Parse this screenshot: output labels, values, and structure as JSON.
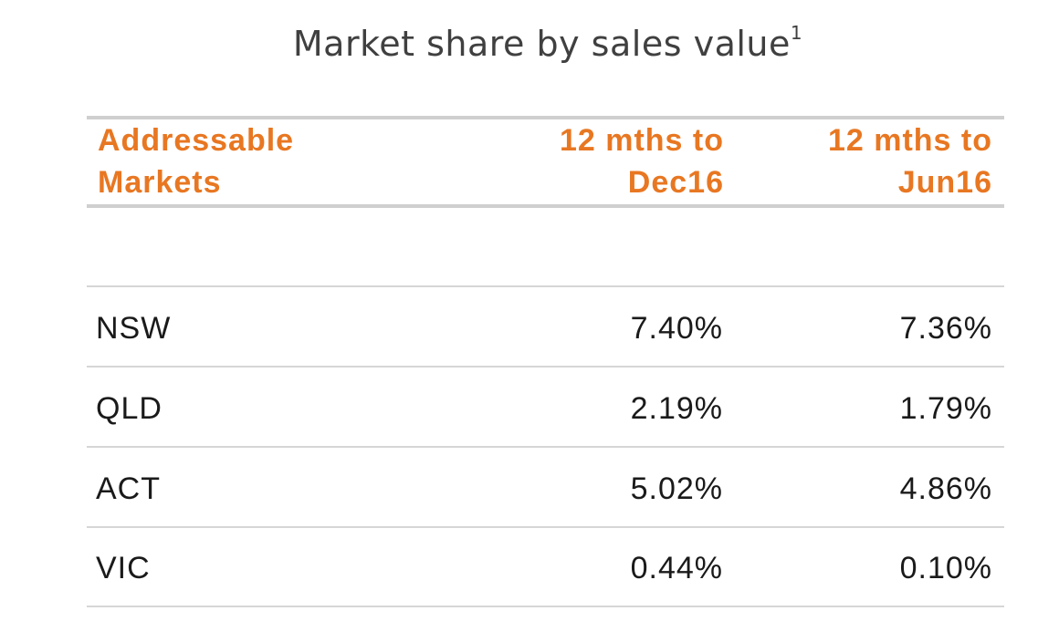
{
  "chart_data": {
    "type": "table",
    "title": "Market share by sales value",
    "title_footnote": "1",
    "columns": [
      {
        "lines": [
          "Addressable",
          "Markets"
        ]
      },
      {
        "lines": [
          "12 mths to",
          "Dec16"
        ]
      },
      {
        "lines": [
          "12 mths to",
          "Jun16"
        ]
      }
    ],
    "rows": [
      {
        "market": "NSW",
        "dec16": "7.40%",
        "jun16": "7.36%"
      },
      {
        "market": "QLD",
        "dec16": "2.19%",
        "jun16": "1.79%"
      },
      {
        "market": "ACT",
        "dec16": "5.02%",
        "jun16": "4.86%"
      },
      {
        "market": "VIC",
        "dec16": "0.44%",
        "jun16": "0.10%"
      }
    ],
    "colors": {
      "header_text": "#e87722",
      "title_text": "#404040",
      "body_text": "#1a1a1a",
      "rule": "#cfcfcf"
    }
  }
}
